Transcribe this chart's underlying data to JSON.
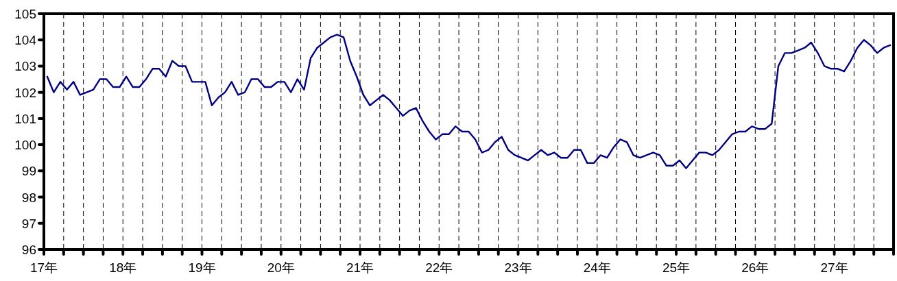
{
  "chart_data": {
    "type": "line",
    "xlim": [
      17,
      27.75
    ],
    "ylim": [
      96,
      105
    ],
    "yticks": [
      96,
      97,
      98,
      99,
      100,
      101,
      102,
      103,
      104,
      105
    ],
    "xticks": [
      {
        "value": 17,
        "label": "17年"
      },
      {
        "value": 17.25,
        "label": null
      },
      {
        "value": 17.5,
        "label": null
      },
      {
        "value": 17.75,
        "label": null
      },
      {
        "value": 18,
        "label": "18年"
      },
      {
        "value": 18.25,
        "label": null
      },
      {
        "value": 18.5,
        "label": null
      },
      {
        "value": 18.75,
        "label": null
      },
      {
        "value": 19,
        "label": "19年"
      },
      {
        "value": 19.25,
        "label": null
      },
      {
        "value": 19.5,
        "label": null
      },
      {
        "value": 19.75,
        "label": null
      },
      {
        "value": 20,
        "label": "20年"
      },
      {
        "value": 20.25,
        "label": null
      },
      {
        "value": 20.5,
        "label": null
      },
      {
        "value": 20.75,
        "label": null
      },
      {
        "value": 21,
        "label": "21年"
      },
      {
        "value": 21.25,
        "label": null
      },
      {
        "value": 21.5,
        "label": null
      },
      {
        "value": 21.75,
        "label": null
      },
      {
        "value": 22,
        "label": "22年"
      },
      {
        "value": 22.25,
        "label": null
      },
      {
        "value": 22.5,
        "label": null
      },
      {
        "value": 22.75,
        "label": null
      },
      {
        "value": 23,
        "label": "23年"
      },
      {
        "value": 23.25,
        "label": null
      },
      {
        "value": 23.5,
        "label": null
      },
      {
        "value": 23.75,
        "label": null
      },
      {
        "value": 24,
        "label": "24年"
      },
      {
        "value": 24.25,
        "label": null
      },
      {
        "value": 24.5,
        "label": null
      },
      {
        "value": 24.75,
        "label": null
      },
      {
        "value": 25,
        "label": "25年"
      },
      {
        "value": 25.25,
        "label": null
      },
      {
        "value": 25.5,
        "label": null
      },
      {
        "value": 25.75,
        "label": null
      },
      {
        "value": 26,
        "label": "26年"
      },
      {
        "value": 26.25,
        "label": null
      },
      {
        "value": 26.5,
        "label": null
      },
      {
        "value": 26.75,
        "label": null
      },
      {
        "value": 27,
        "label": "27年"
      },
      {
        "value": 27.25,
        "label": null
      },
      {
        "value": 27.5,
        "label": null
      },
      {
        "value": 27.75,
        "label": null
      }
    ],
    "grid": "x",
    "x": [
      17.042,
      17.125,
      17.208,
      17.292,
      17.375,
      17.458,
      17.542,
      17.625,
      17.708,
      17.792,
      17.875,
      17.958,
      18.042,
      18.125,
      18.208,
      18.292,
      18.375,
      18.458,
      18.542,
      18.625,
      18.708,
      18.792,
      18.875,
      18.958,
      19.042,
      19.125,
      19.208,
      19.292,
      19.375,
      19.458,
      19.542,
      19.625,
      19.708,
      19.792,
      19.875,
      19.958,
      20.042,
      20.125,
      20.208,
      20.292,
      20.375,
      20.458,
      20.542,
      20.625,
      20.708,
      20.792,
      20.875,
      20.958,
      21.042,
      21.125,
      21.208,
      21.292,
      21.375,
      21.458,
      21.542,
      21.625,
      21.708,
      21.792,
      21.875,
      21.958,
      22.042,
      22.125,
      22.208,
      22.292,
      22.375,
      22.458,
      22.542,
      22.625,
      22.708,
      22.792,
      22.875,
      22.958,
      23.042,
      23.125,
      23.208,
      23.292,
      23.375,
      23.458,
      23.542,
      23.625,
      23.708,
      23.792,
      23.875,
      23.958,
      24.042,
      24.125,
      24.208,
      24.292,
      24.375,
      24.458,
      24.542,
      24.625,
      24.708,
      24.792,
      24.875,
      24.958,
      25.042,
      25.125,
      25.208,
      25.292,
      25.375,
      25.458,
      25.542,
      25.625,
      25.708,
      25.792,
      25.875,
      25.958,
      26.042,
      26.125,
      26.208,
      26.292,
      26.375,
      26.458,
      26.542,
      26.625,
      26.708,
      26.792,
      26.875,
      26.958,
      27.042,
      27.125,
      27.208,
      27.292,
      27.375,
      27.458,
      27.542,
      27.625,
      27.708
    ],
    "series": [
      {
        "color": "#000080",
        "values": [
          102.6,
          102.0,
          102.4,
          102.1,
          102.4,
          101.9,
          102.0,
          102.1,
          102.5,
          102.5,
          102.2,
          102.2,
          102.6,
          102.2,
          102.2,
          102.5,
          102.9,
          102.9,
          102.6,
          103.2,
          103.0,
          103.0,
          102.4,
          102.4,
          102.4,
          101.5,
          101.8,
          102.0,
          102.4,
          101.9,
          102.0,
          102.5,
          102.5,
          102.2,
          102.2,
          102.4,
          102.4,
          102.0,
          102.5,
          102.1,
          103.3,
          103.7,
          103.9,
          104.1,
          104.2,
          104.1,
          103.2,
          102.6,
          101.9,
          101.5,
          101.7,
          101.9,
          101.7,
          101.4,
          101.1,
          101.3,
          101.4,
          100.9,
          100.5,
          100.2,
          100.4,
          100.4,
          100.7,
          100.5,
          100.5,
          100.2,
          99.7,
          99.8,
          100.1,
          100.3,
          99.8,
          99.6,
          99.5,
          99.4,
          99.6,
          99.8,
          99.6,
          99.7,
          99.5,
          99.5,
          99.8,
          99.8,
          99.3,
          99.3,
          99.6,
          99.5,
          99.9,
          100.2,
          100.1,
          99.6,
          99.5,
          99.6,
          99.7,
          99.6,
          99.2,
          99.2,
          99.4,
          99.1,
          99.4,
          99.7,
          99.7,
          99.6,
          99.8,
          100.1,
          100.4,
          100.5,
          100.5,
          100.7,
          100.6,
          100.6,
          100.8,
          103.0,
          103.5,
          103.5,
          103.6,
          103.7,
          103.9,
          103.5,
          103.0,
          102.9,
          102.9,
          102.8,
          103.2,
          103.7,
          104.0,
          103.8,
          103.5,
          103.7,
          103.8
        ]
      }
    ]
  }
}
